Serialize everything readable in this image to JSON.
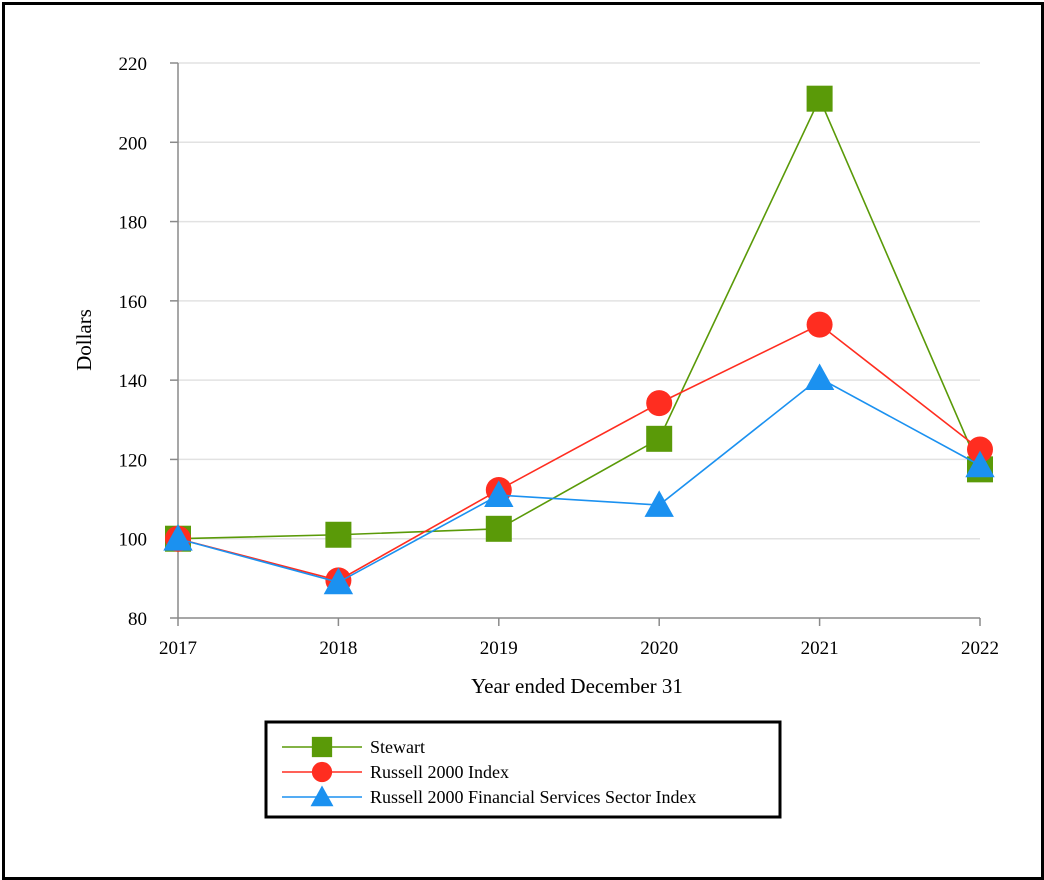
{
  "chart_data": {
    "type": "line",
    "title": "",
    "xlabel": "Year ended December 31",
    "ylabel": "Dollars",
    "categories": [
      "2017",
      "2018",
      "2019",
      "2020",
      "2021",
      "2022"
    ],
    "ylim": [
      80,
      220
    ],
    "yticks": [
      80,
      100,
      120,
      140,
      160,
      180,
      200,
      220
    ],
    "grid": true,
    "legend_position": "bottom-center",
    "series": [
      {
        "name": "Stewart",
        "marker": "square",
        "color": "#5a9a08",
        "values": [
          100.0,
          101.0,
          102.5,
          125.2,
          211.0,
          117.5
        ]
      },
      {
        "name": "Russell 2000 Index",
        "marker": "circle",
        "color": "#ff2d20",
        "values": [
          100.0,
          89.5,
          112.3,
          134.2,
          154.0,
          122.5
        ]
      },
      {
        "name": "Russell 2000 Financial Services Sector Index",
        "marker": "triangle",
        "color": "#1b91f0",
        "values": [
          100.0,
          89.0,
          111.0,
          108.5,
          140.5,
          118.5
        ]
      }
    ]
  }
}
